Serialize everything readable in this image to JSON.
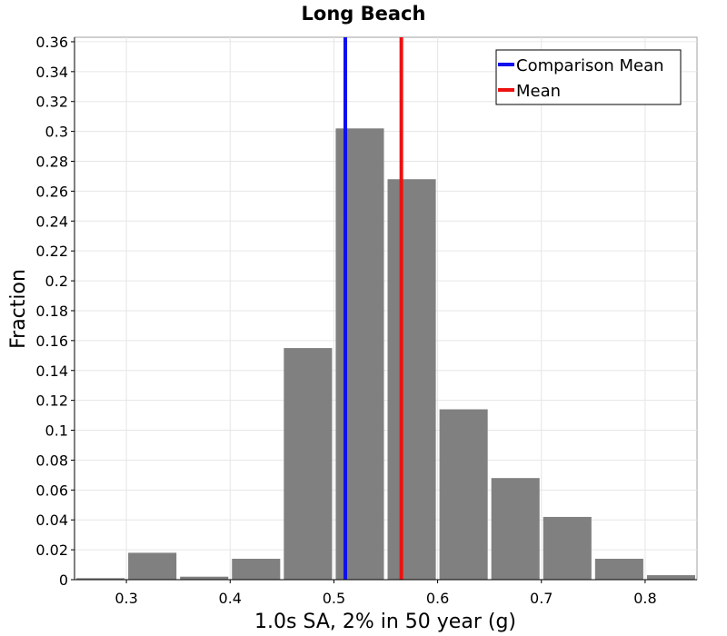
{
  "chart_data": {
    "type": "bar",
    "title": "Long Beach",
    "xlabel": "1.0s SA, 2% in 50 year (g)",
    "ylabel": "Fraction",
    "xlim": [
      0.25,
      0.85
    ],
    "ylim": [
      0,
      0.363
    ],
    "x_ticks": [
      "0.3",
      "0.4",
      "0.5",
      "0.6",
      "0.7",
      "0.8"
    ],
    "y_ticks": [
      "0",
      "0.02",
      "0.04",
      "0.06",
      "0.08",
      "0.1",
      "0.12",
      "0.14",
      "0.16",
      "0.18",
      "0.2",
      "0.22",
      "0.24",
      "0.26",
      "0.28",
      "0.3",
      "0.32",
      "0.34",
      "0.36"
    ],
    "bin_width": 0.05,
    "bin_centers": [
      0.275,
      0.325,
      0.375,
      0.425,
      0.475,
      0.525,
      0.575,
      0.625,
      0.675,
      0.725,
      0.775,
      0.825
    ],
    "values": [
      0.001,
      0.018,
      0.002,
      0.014,
      0.155,
      0.302,
      0.268,
      0.114,
      0.068,
      0.042,
      0.014,
      0.003
    ],
    "bar_color": "#808080",
    "grid": true,
    "legend_position": "top-right",
    "lines": [
      {
        "name": "Comparison Mean",
        "x": 0.511,
        "color": "#1010ee"
      },
      {
        "name": "Mean",
        "x": 0.565,
        "color": "#ee1010"
      }
    ]
  }
}
